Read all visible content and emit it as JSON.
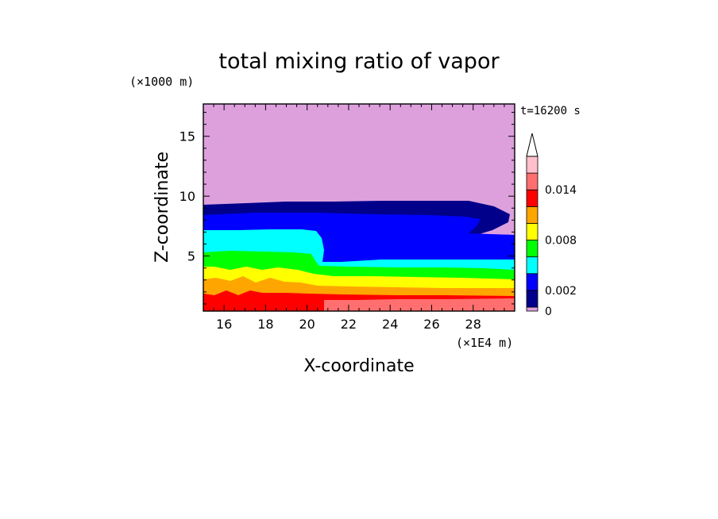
{
  "chart_data": {
    "type": "contour",
    "title": "total mixing ratio of vapor",
    "xlabel": "X-coordinate",
    "ylabel": "Z-coordinate",
    "x_unit": "(×1E4 m)",
    "y_unit": "(×1000 m)",
    "time_label": "t=16200 s",
    "xlim": [
      15,
      30
    ],
    "ylim": [
      0.4,
      17.7
    ],
    "x_ticks": [
      "16",
      "18",
      "20",
      "22",
      "24",
      "26",
      "28"
    ],
    "y_ticks": [
      "5",
      "10",
      "15"
    ],
    "colorbar": {
      "levels": [
        0,
        0.001,
        0.002,
        0.004,
        0.006,
        0.008,
        0.01,
        0.012,
        0.014,
        0.016
      ],
      "colors": [
        "#dda0dd",
        "#00008b",
        "#0000ff",
        "#00ffff",
        "#00ff00",
        "#ffff00",
        "#ffa500",
        "#ff0000",
        "#ff6f6f",
        "#ffc0cb"
      ],
      "labels": [
        "0",
        "0.002",
        "0.008",
        "0.014"
      ],
      "extend": "max"
    }
  }
}
